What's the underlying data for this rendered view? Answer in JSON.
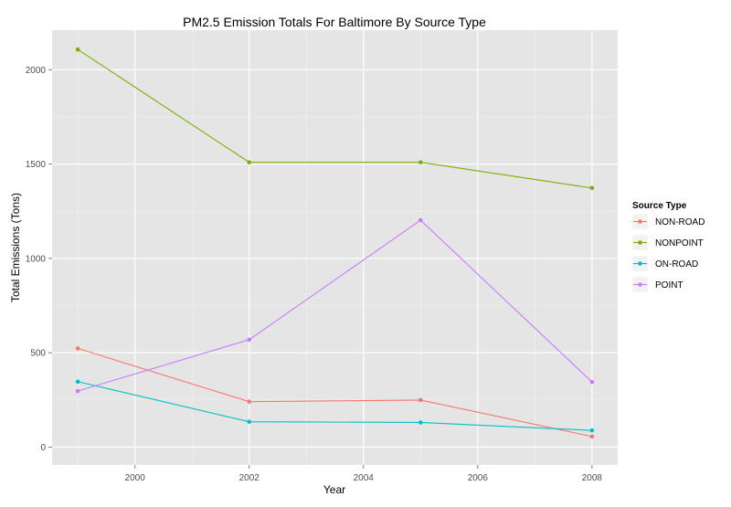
{
  "chart_data": {
    "type": "line",
    "title": "PM2.5 Emission Totals For Baltimore By Source Type",
    "xlabel": "Year",
    "ylabel": "Total Emissions (Tons)",
    "x": [
      1999,
      2002,
      2005,
      2008
    ],
    "xlim": [
      1998.55,
      2008.45
    ],
    "ylim": [
      -95,
      2210
    ],
    "x_ticks": [
      2000,
      2002,
      2004,
      2006,
      2008
    ],
    "x_tick_labels": [
      "2000",
      "2002",
      "2004",
      "2006",
      "2008"
    ],
    "y_ticks": [
      0,
      500,
      1000,
      1500,
      2000
    ],
    "y_tick_labels": [
      "0",
      "500",
      "1000",
      "1500",
      "2000"
    ],
    "legend": {
      "title": "Source Type",
      "position": "right"
    },
    "grid": true,
    "series": [
      {
        "name": "NON-ROAD",
        "color": "#F8766D",
        "values": [
          522.9,
          240.8,
          248.9,
          55.8
        ]
      },
      {
        "name": "NONPOINT",
        "color": "#7CAE00",
        "values": [
          2107.6,
          1509.5,
          1509.5,
          1373.2
        ]
      },
      {
        "name": "ON-ROAD",
        "color": "#00BFC4",
        "values": [
          346.8,
          134.3,
          130.4,
          88.3
        ]
      },
      {
        "name": "POINT",
        "color": "#C77CFF",
        "values": [
          296.8,
          569.3,
          1202.5,
          344.98
        ]
      }
    ]
  }
}
